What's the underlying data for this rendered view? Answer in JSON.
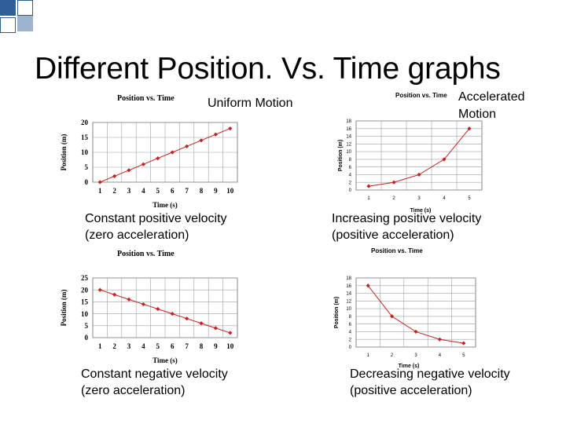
{
  "slide": {
    "title": "Different Position. Vs. Time graphs",
    "colors": {
      "deco_blue": "#2f5f9a",
      "grid": "#a0a0a0",
      "series": "#cc1f1f"
    }
  },
  "sections": {
    "uniform": "Uniform Motion",
    "accelerated_line1": "Accelerated",
    "accelerated_line2": "Motion"
  },
  "captions": {
    "c1_line1": "Constant positive velocity",
    "c1_line2": "(zero acceleration)",
    "c2_line1": "Increasing positive velocity",
    "c2_line2": "(positive acceleration)",
    "c3_line1": "Constant negative velocity",
    "c3_line2": "(zero acceleration)",
    "c4_line1": "Decreasing negative velocity",
    "c4_line2": "(positive acceleration)"
  },
  "chart_data": [
    {
      "type": "line",
      "title": "Position vs. Time",
      "xlabel": "Time (s)",
      "ylabel": "Position (m)",
      "x": [
        1,
        2,
        3,
        4,
        5,
        6,
        7,
        8,
        9,
        10
      ],
      "series": [
        {
          "values": [
            0,
            2,
            4,
            6,
            8,
            10,
            12,
            14,
            16,
            18
          ]
        }
      ],
      "xticks": [
        "1",
        "2",
        "3",
        "4",
        "5",
        "6",
        "7",
        "8",
        "9",
        "10"
      ],
      "yticks": [
        "0",
        "5",
        "10",
        "15",
        "20"
      ],
      "ylim": [
        0,
        20
      ],
      "grid": true
    },
    {
      "type": "line",
      "title": "Position vs. Time",
      "xlabel": "Time (s)",
      "ylabel": "Position (m)",
      "x": [
        1,
        2,
        3,
        4,
        5
      ],
      "series": [
        {
          "values": [
            1,
            2,
            4,
            8,
            16
          ]
        }
      ],
      "xticks": [
        "1",
        "2",
        "3",
        "4",
        "5"
      ],
      "yticks": [
        "0",
        "2",
        "4",
        "6",
        "8",
        "10",
        "12",
        "14",
        "16",
        "18"
      ],
      "ylim": [
        0,
        18
      ],
      "grid": true
    },
    {
      "type": "line",
      "title": "Position vs. Time",
      "xlabel": "Time (s)",
      "ylabel": "Position (m)",
      "x": [
        1,
        2,
        3,
        4,
        5,
        6,
        7,
        8,
        9,
        10
      ],
      "series": [
        {
          "values": [
            20,
            18,
            16,
            14,
            12,
            10,
            8,
            6,
            4,
            2
          ]
        }
      ],
      "xticks": [
        "1",
        "2",
        "3",
        "4",
        "5",
        "6",
        "7",
        "8",
        "9",
        "10"
      ],
      "yticks": [
        "0",
        "5",
        "10",
        "15",
        "20",
        "25"
      ],
      "ylim": [
        0,
        25
      ],
      "grid": true
    },
    {
      "type": "line",
      "title": "Position vs. Time",
      "xlabel": "Time (s)",
      "ylabel": "Position (m)",
      "x": [
        1,
        2,
        3,
        4,
        5
      ],
      "series": [
        {
          "values": [
            16,
            8,
            4,
            2,
            1
          ]
        }
      ],
      "xticks": [
        "1",
        "2",
        "3",
        "4",
        "5"
      ],
      "yticks": [
        "0",
        "2",
        "4",
        "6",
        "8",
        "10",
        "12",
        "14",
        "16",
        "18"
      ],
      "ylim": [
        0,
        18
      ],
      "grid": true
    }
  ]
}
